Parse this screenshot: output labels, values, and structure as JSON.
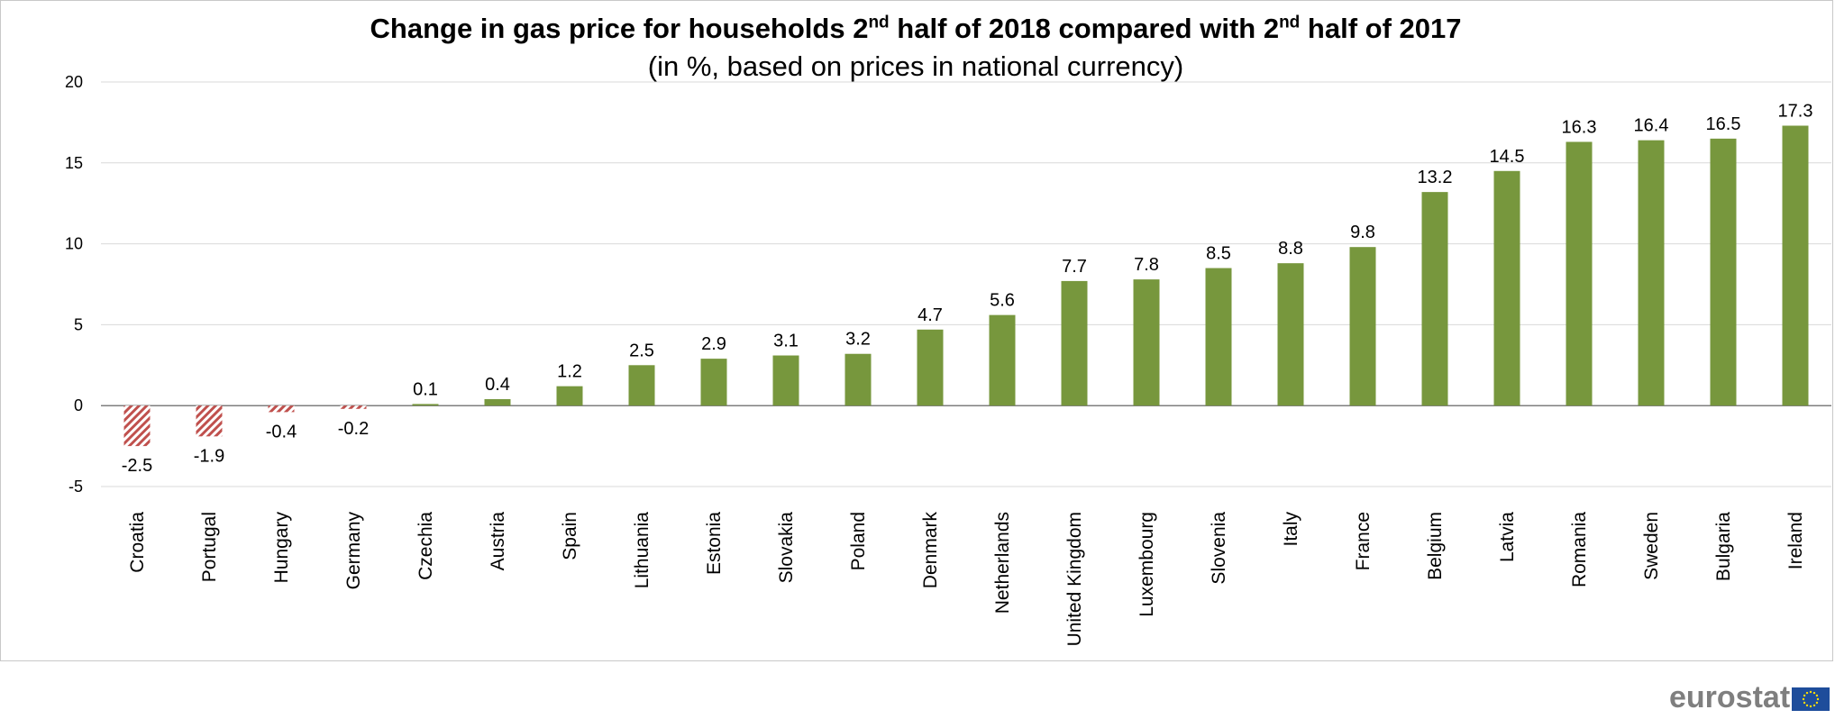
{
  "chart_data": {
    "type": "bar",
    "title": "Change in gas price for households 2nd half of 2018 compared with 2nd half of 2017",
    "title_parts": {
      "a": "Change in gas price for households 2",
      "sup1": "nd",
      "b": " half of 2018 compared with 2",
      "sup2": "nd",
      "c": " half of 2017"
    },
    "subtitle": "(in %, based on prices in national currency)",
    "categories": [
      "Croatia",
      "Portugal",
      "Hungary",
      "Germany",
      "Czechia",
      "Austria",
      "Spain",
      "Lithuania",
      "Estonia",
      "Slovakia",
      "Poland",
      "Denmark",
      "Netherlands",
      "United Kingdom",
      "Luxembourg",
      "Slovenia",
      "Italy",
      "France",
      "Belgium",
      "Latvia",
      "Romania",
      "Sweden",
      "Bulgaria",
      "Ireland"
    ],
    "values": [
      -2.5,
      -1.9,
      -0.4,
      -0.2,
      0.1,
      0.4,
      1.2,
      2.5,
      2.9,
      3.1,
      3.2,
      4.7,
      5.6,
      7.7,
      7.8,
      8.5,
      8.8,
      9.8,
      13.2,
      14.5,
      16.3,
      16.4,
      16.5,
      17.3
    ],
    "ylim": [
      -5,
      20
    ],
    "yticks": [
      -5,
      0,
      5,
      10,
      15,
      20
    ],
    "grid": true,
    "legend": "none",
    "colors": {
      "positive": "#77973d",
      "negative": "#c0504d",
      "grid": "#d9d9d9",
      "axis": "#7f7f7f"
    }
  },
  "logo": {
    "text": "eurostat",
    "flag_color": "#1e4d9b",
    "star_color": "#ffdd00"
  }
}
